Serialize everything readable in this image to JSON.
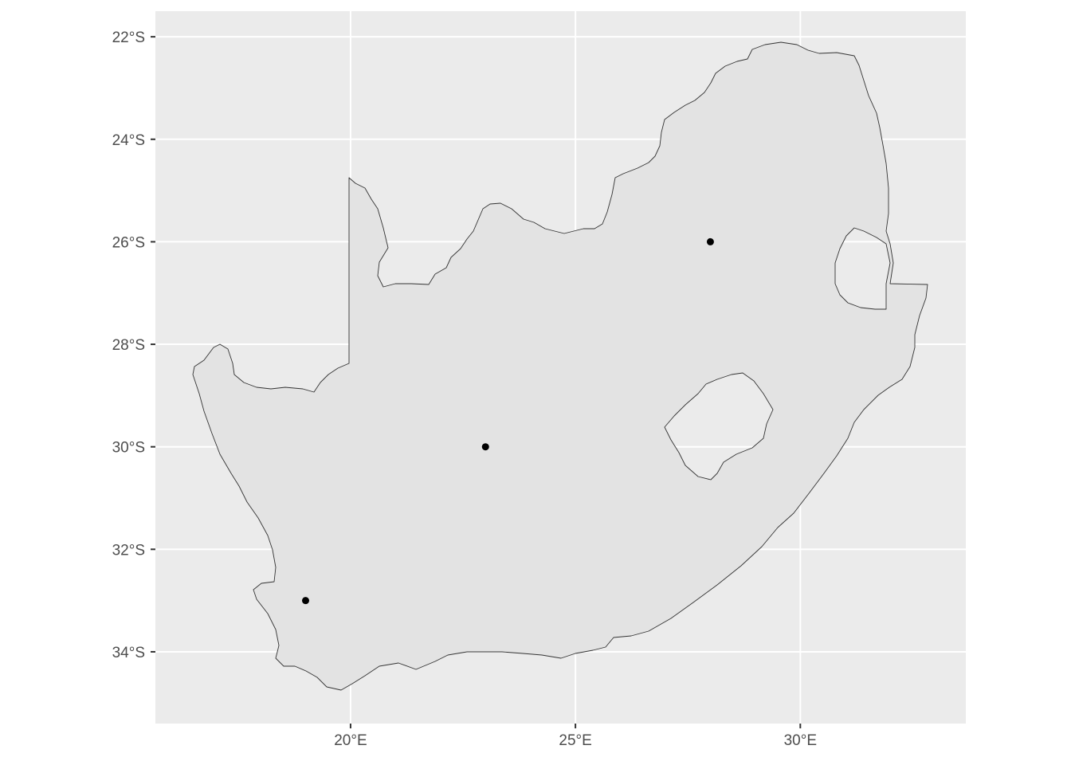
{
  "map": {
    "x_ticks": [
      {
        "value": 20,
        "label": "20°E"
      },
      {
        "value": 25,
        "label": "25°E"
      },
      {
        "value": 30,
        "label": "30°E"
      }
    ],
    "y_ticks": [
      {
        "value": -22,
        "label": "22°S"
      },
      {
        "value": -24,
        "label": "24°S"
      },
      {
        "value": -26,
        "label": "26°S"
      },
      {
        "value": -28,
        "label": "28°S"
      },
      {
        "value": -30,
        "label": "30°S"
      },
      {
        "value": -32,
        "label": "32°S"
      },
      {
        "value": -34,
        "label": "34°S"
      }
    ],
    "lon_range": [
      15.66,
      33.68
    ],
    "lat_range": [
      -35.4,
      -21.5
    ],
    "panel_color": "#ebebeb",
    "land_color": "#e3e3e3",
    "outline_color": "#333333",
    "points": [
      {
        "lon": 19,
        "lat": -33
      },
      {
        "lon": 23,
        "lat": -30
      },
      {
        "lon": 28,
        "lat": -26
      }
    ]
  }
}
